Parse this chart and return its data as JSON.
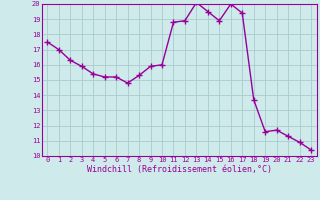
{
  "x": [
    0,
    1,
    2,
    3,
    4,
    5,
    6,
    7,
    8,
    9,
    10,
    11,
    12,
    13,
    14,
    15,
    16,
    17,
    18,
    19,
    20,
    21,
    22,
    23
  ],
  "y": [
    17.5,
    17.0,
    16.3,
    15.9,
    15.4,
    15.2,
    15.2,
    14.8,
    15.3,
    15.9,
    16.0,
    18.8,
    18.9,
    20.1,
    19.5,
    18.9,
    20.0,
    19.4,
    13.7,
    11.6,
    11.7,
    11.3,
    10.9,
    10.4
  ],
  "line_color": "#990099",
  "marker": "D",
  "marker_size": 2.0,
  "bg_color": "#ceeaea",
  "grid_color": "#aacccc",
  "xlabel": "Windchill (Refroidissement éolien,°C)",
  "xlabel_color": "#990099",
  "ylim": [
    10,
    20
  ],
  "xlim": [
    -0.5,
    23.5
  ],
  "yticks": [
    10,
    11,
    12,
    13,
    14,
    15,
    16,
    17,
    18,
    19,
    20
  ],
  "xticks": [
    0,
    1,
    2,
    3,
    4,
    5,
    6,
    7,
    8,
    9,
    10,
    11,
    12,
    13,
    14,
    15,
    16,
    17,
    18,
    19,
    20,
    21,
    22,
    23
  ],
  "tick_color": "#990099",
  "tick_fontsize": 5.0,
  "xlabel_fontsize": 6.0,
  "linewidth": 1.0
}
